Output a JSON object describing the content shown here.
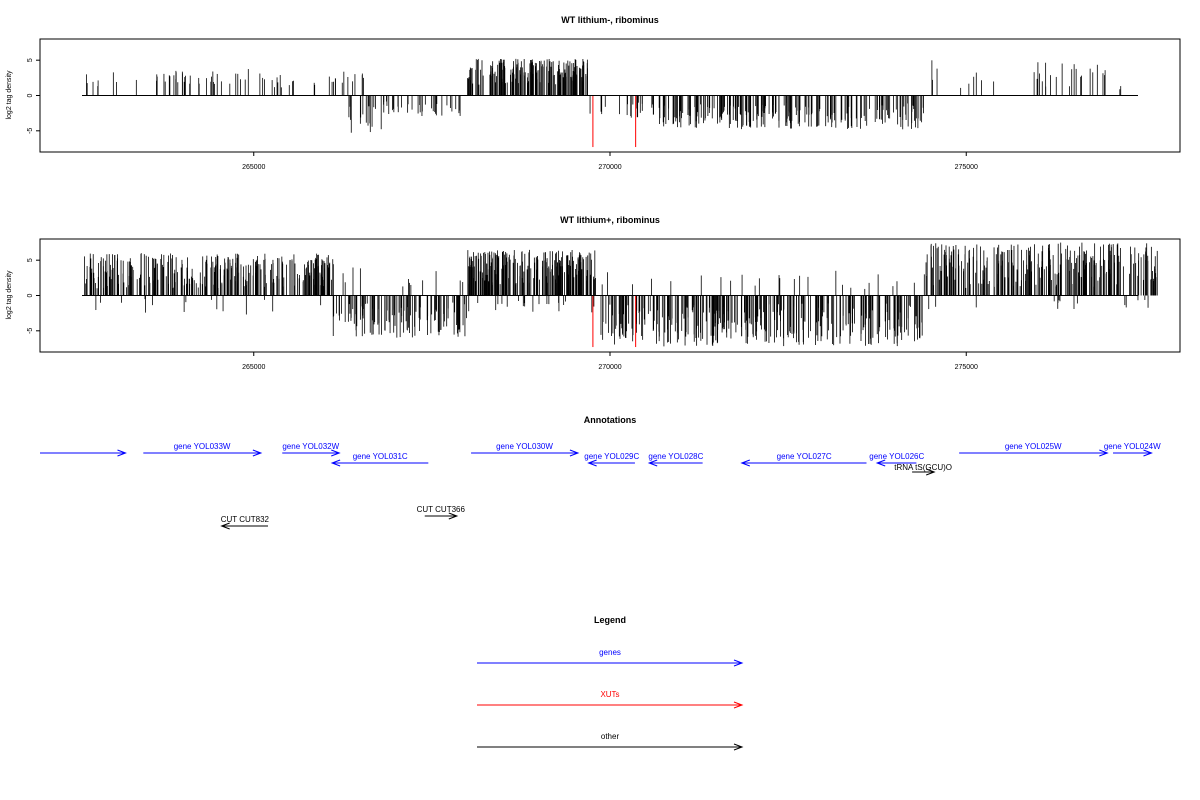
{
  "chart_data": [
    {
      "type": "bar",
      "title": "WT lithium-, ribominus",
      "ylabel": "log2 tag density",
      "xlim": [
        262000,
        278000
      ],
      "ylim": [
        -8,
        8
      ],
      "xticks": [
        265000,
        270000,
        275000
      ],
      "yticks": [
        -5,
        0,
        5
      ],
      "grid": false,
      "highlight_color": "#ff0000",
      "bar_color": "#000000",
      "highlights": [
        {
          "x": 269760,
          "y": -7.3
        },
        {
          "x": 270360,
          "y": -7.3
        }
      ],
      "density_segments": [
        {
          "start": 262600,
          "end": 263200,
          "sign": 1,
          "min": 1.0,
          "max": 3.6,
          "count": 7
        },
        {
          "start": 263300,
          "end": 263400,
          "sign": 1,
          "min": 1.5,
          "max": 2.5,
          "count": 1
        },
        {
          "start": 263600,
          "end": 264700,
          "sign": 1,
          "min": 1.5,
          "max": 3.5,
          "count": 30
        },
        {
          "start": 264700,
          "end": 265400,
          "sign": 1,
          "min": 1.0,
          "max": 3.8,
          "count": 14
        },
        {
          "start": 265400,
          "end": 265700,
          "sign": 1,
          "min": 1.0,
          "max": 2.5,
          "count": 3
        },
        {
          "start": 265800,
          "end": 266600,
          "sign": 1,
          "min": 1.5,
          "max": 3.5,
          "count": 15
        },
        {
          "start": 266200,
          "end": 266800,
          "sign": -1,
          "min": 1.0,
          "max": 5.3,
          "count": 16
        },
        {
          "start": 266800,
          "end": 267900,
          "sign": -1,
          "min": 0.8,
          "max": 3.0,
          "count": 35
        },
        {
          "start": 268000,
          "end": 269700,
          "sign": 1,
          "min": 1.5,
          "max": 5.2,
          "count": 180
        },
        {
          "start": 269700,
          "end": 270600,
          "sign": -1,
          "min": 0.8,
          "max": 3.2,
          "count": 20
        },
        {
          "start": 270600,
          "end": 274400,
          "sign": -1,
          "min": 1.0,
          "max": 4.8,
          "count": 230
        },
        {
          "start": 274500,
          "end": 274700,
          "sign": 1,
          "min": 1.0,
          "max": 5.0,
          "count": 3
        },
        {
          "start": 274900,
          "end": 275500,
          "sign": 1,
          "min": 1.0,
          "max": 3.5,
          "count": 6
        },
        {
          "start": 275900,
          "end": 277000,
          "sign": 1,
          "min": 1.0,
          "max": 4.8,
          "count": 22
        },
        {
          "start": 277000,
          "end": 277200,
          "sign": 1,
          "min": 0.8,
          "max": 1.8,
          "count": 2
        }
      ]
    },
    {
      "type": "bar",
      "title": "WT lithium+, ribominus",
      "ylabel": "log2 tag density",
      "xlim": [
        262000,
        278000
      ],
      "ylim": [
        -8,
        8
      ],
      "xticks": [
        265000,
        270000,
        275000
      ],
      "yticks": [
        -5,
        0,
        5
      ],
      "grid": false,
      "highlight_color": "#ff0000",
      "bar_color": "#000000",
      "highlights": [
        {
          "x": 269760,
          "y": -7.3
        },
        {
          "x": 270360,
          "y": -7.3
        }
      ],
      "density_segments": [
        {
          "start": 262600,
          "end": 266200,
          "sign": 1,
          "min": 1.0,
          "max": 6.0,
          "count": 300
        },
        {
          "start": 262600,
          "end": 266100,
          "sign": -1,
          "min": 0.5,
          "max": 2.8,
          "count": 15
        },
        {
          "start": 266100,
          "end": 268000,
          "sign": -1,
          "min": 1.0,
          "max": 6.0,
          "count": 120
        },
        {
          "start": 266200,
          "end": 268000,
          "sign": 1,
          "min": 0.5,
          "max": 4.0,
          "count": 12
        },
        {
          "start": 268000,
          "end": 269800,
          "sign": 1,
          "min": 1.5,
          "max": 6.5,
          "count": 220
        },
        {
          "start": 268000,
          "end": 269800,
          "sign": -1,
          "min": 0.5,
          "max": 2.5,
          "count": 20
        },
        {
          "start": 269800,
          "end": 274400,
          "sign": -1,
          "min": 1.0,
          "max": 7.2,
          "count": 320
        },
        {
          "start": 269800,
          "end": 274400,
          "sign": 1,
          "min": 0.5,
          "max": 3.5,
          "count": 25
        },
        {
          "start": 274400,
          "end": 277700,
          "sign": 1,
          "min": 1.0,
          "max": 7.5,
          "count": 260
        },
        {
          "start": 274400,
          "end": 277700,
          "sign": -1,
          "min": 0.5,
          "max": 2.0,
          "count": 15
        }
      ]
    }
  ],
  "annotations": {
    "title": "Annotations",
    "xlim": [
      262000,
      278000
    ],
    "features": [
      {
        "name": "",
        "start": 262000,
        "end": 263200,
        "strand": "+",
        "type": "gene",
        "track": 0
      },
      {
        "name": "gene YOL033W",
        "start": 263450,
        "end": 265100,
        "strand": "+",
        "type": "gene",
        "track": 0
      },
      {
        "name": "gene YOL032W",
        "start": 265400,
        "end": 266200,
        "strand": "+",
        "type": "gene",
        "track": 0
      },
      {
        "name": "gene YOL031C",
        "start": 266100,
        "end": 267450,
        "strand": "-",
        "type": "gene",
        "track": 1
      },
      {
        "name": "gene YOL030W",
        "start": 268050,
        "end": 269550,
        "strand": "+",
        "type": "gene",
        "track": 0
      },
      {
        "name": "gene YOL029C",
        "start": 269700,
        "end": 270350,
        "strand": "-",
        "type": "gene",
        "track": 1
      },
      {
        "name": "gene YOL028C",
        "start": 270550,
        "end": 271300,
        "strand": "-",
        "type": "gene",
        "track": 1
      },
      {
        "name": "gene YOL027C",
        "start": 271850,
        "end": 273600,
        "strand": "-",
        "type": "gene",
        "track": 1
      },
      {
        "name": "gene YOL026C",
        "start": 273750,
        "end": 274300,
        "strand": "-",
        "type": "gene",
        "track": 1
      },
      {
        "name": "tRNA tS(GCU)O",
        "start": 274240,
        "end": 274550,
        "strand": "+",
        "type": "other",
        "track": 2
      },
      {
        "name": "gene YOL025W",
        "start": 274900,
        "end": 276980,
        "strand": "+",
        "type": "gene",
        "track": 0
      },
      {
        "name": "gene YOL024W",
        "start": 277060,
        "end": 277600,
        "strand": "+",
        "type": "gene",
        "track": 0
      },
      {
        "name": "CUT CUT832",
        "start": 264550,
        "end": 265200,
        "strand": "-",
        "type": "other",
        "track": 3
      },
      {
        "name": "CUT CUT366",
        "start": 267400,
        "end": 267850,
        "strand": "+",
        "type": "other",
        "track": 4
      }
    ]
  },
  "legend": {
    "title": "Legend",
    "items": [
      {
        "label": "genes",
        "color": "#0000ff"
      },
      {
        "label": "XUTs",
        "color": "#ff0000"
      },
      {
        "label": "other",
        "color": "#000000"
      }
    ]
  },
  "colors": {
    "gene": "#0000ff",
    "xut": "#ff0000",
    "other": "#000000"
  }
}
